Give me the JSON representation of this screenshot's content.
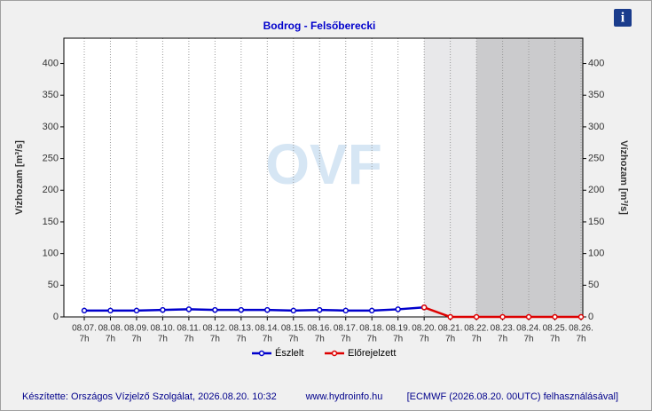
{
  "chart_data": {
    "type": "line",
    "title": "Bodrog - Felsőberecki",
    "y_label": "Vízhozam [m³/s]",
    "watermark": "OVF",
    "categories": [
      "08.07.",
      "08.08.",
      "08.09.",
      "08.10.",
      "08.11.",
      "08.12.",
      "08.13.",
      "08.14.",
      "08.15.",
      "08.16.",
      "08.17.",
      "08.18.",
      "08.19.",
      "08.20.",
      "08.21.",
      "08.22.",
      "08.23.",
      "08.24.",
      "08.25.",
      "08.26."
    ],
    "category_hour": "7h",
    "series": [
      {
        "name": "Észlelt",
        "color": "#0000cc",
        "values": [
          10,
          10,
          10,
          11,
          12,
          11,
          11,
          11,
          10,
          11,
          10,
          10,
          12,
          15,
          null,
          null,
          null,
          null,
          null,
          null
        ]
      },
      {
        "name": "Előrejelzett",
        "color": "#dd0000",
        "values": [
          null,
          null,
          null,
          null,
          null,
          null,
          null,
          null,
          null,
          null,
          null,
          null,
          null,
          15,
          0,
          0,
          0,
          0,
          0,
          0
        ]
      }
    ],
    "ylim": [
      0,
      440
    ],
    "yticks": [
      0,
      50,
      100,
      150,
      200,
      250,
      300,
      350,
      400
    ],
    "grid": true,
    "footer": {
      "left": "Készítette: Országos Vízjelző Szolgálat, 2026.08.20. 10:32",
      "center": "www.hydroinfo.hu",
      "right": "[ECMWF (2026.08.20. 00UTC) felhasználásával]"
    }
  }
}
